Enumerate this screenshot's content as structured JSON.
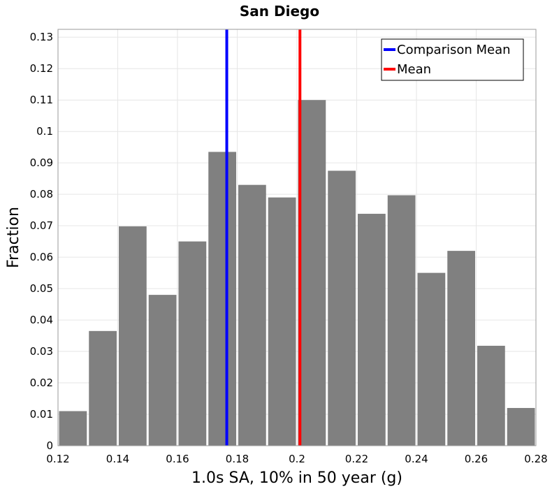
{
  "chart_data": {
    "type": "bar",
    "title": "San Diego",
    "xlabel": "1.0s SA, 10% in 50 year (g)",
    "ylabel": "Fraction",
    "xlim": [
      0.12,
      0.28
    ],
    "ylim": [
      0,
      0.1325
    ],
    "bin_width": 0.01,
    "bins": [
      {
        "center": 0.125,
        "value": 0.011
      },
      {
        "center": 0.135,
        "value": 0.0365
      },
      {
        "center": 0.145,
        "value": 0.0698
      },
      {
        "center": 0.155,
        "value": 0.048
      },
      {
        "center": 0.165,
        "value": 0.065
      },
      {
        "center": 0.175,
        "value": 0.0935
      },
      {
        "center": 0.185,
        "value": 0.083
      },
      {
        "center": 0.195,
        "value": 0.079
      },
      {
        "center": 0.205,
        "value": 0.11
      },
      {
        "center": 0.215,
        "value": 0.0875
      },
      {
        "center": 0.225,
        "value": 0.0738
      },
      {
        "center": 0.235,
        "value": 0.0797
      },
      {
        "center": 0.245,
        "value": 0.055
      },
      {
        "center": 0.255,
        "value": 0.062
      },
      {
        "center": 0.265,
        "value": 0.0318
      },
      {
        "center": 0.275,
        "value": 0.012
      }
    ],
    "bar_color": "#808080",
    "lines": [
      {
        "name": "Comparison Mean",
        "x": 0.1765,
        "color": "#0000ff"
      },
      {
        "name": "Mean",
        "x": 0.201,
        "color": "#ff0000"
      }
    ],
    "x_ticks": [
      "0.12",
      "0.14",
      "0.16",
      "0.18",
      "0.2",
      "0.22",
      "0.24",
      "0.26",
      "0.28"
    ],
    "y_ticks": [
      "0",
      "0.01",
      "0.02",
      "0.03",
      "0.04",
      "0.05",
      "0.06",
      "0.07",
      "0.08",
      "0.09",
      "0.1",
      "0.11",
      "0.12",
      "0.13"
    ],
    "grid": true,
    "legend_position": "top-right"
  }
}
